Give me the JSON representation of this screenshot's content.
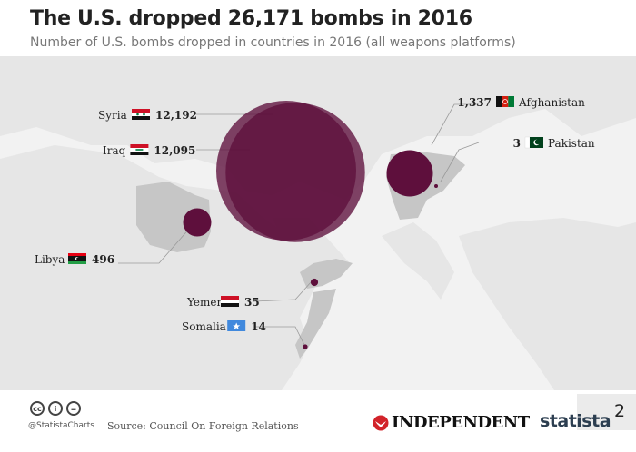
{
  "header": {
    "title": "The U.S. dropped 26,171 bombs in 2016",
    "subtitle": "Number of U.S. bombs dropped in countries in 2016 (all weapons platforms)"
  },
  "chart_data": {
    "type": "bubble-map",
    "title": "The U.S. dropped 26,171 bombs in 2016",
    "subtitle": "Number of U.S. bombs dropped in countries in 2016 (all weapons platforms)",
    "bubble_color": "#5e0f3c",
    "points": [
      {
        "country": "Syria",
        "value": "12,192",
        "number": 12192,
        "flag": "syria-flag-icon"
      },
      {
        "country": "Iraq",
        "value": "12,095",
        "number": 12095,
        "flag": "iraq-flag-icon"
      },
      {
        "country": "Afghanistan",
        "value": "1,337",
        "number": 1337,
        "flag": "afghanistan-flag-icon"
      },
      {
        "country": "Pakistan",
        "value": "3",
        "number": 3,
        "flag": "pakistan-flag-icon"
      },
      {
        "country": "Libya",
        "value": "496",
        "number": 496,
        "flag": "libya-flag-icon"
      },
      {
        "country": "Yemen",
        "value": "35",
        "number": 35,
        "flag": "yemen-flag-icon"
      },
      {
        "country": "Somalia",
        "value": "14",
        "number": 14,
        "flag": "somalia-flag-icon"
      }
    ]
  },
  "footer": {
    "cc_icons": [
      "cc",
      "i",
      "="
    ],
    "handle": "@StatistaCharts",
    "source": "Source: Council On Foreign Relations",
    "independent": "INDEPENDENT",
    "statista": "statista",
    "corner_number": "2"
  }
}
